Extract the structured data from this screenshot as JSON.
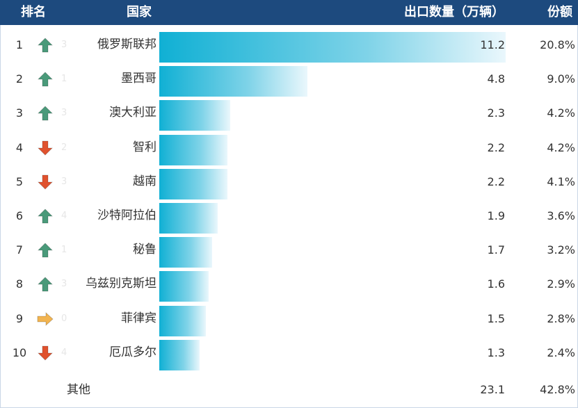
{
  "header": {
    "rank": "排名",
    "country": "国家",
    "exports": "出口数量（万辆）",
    "share": "份额"
  },
  "colors": {
    "header_bg": "#1d4a7e",
    "bar_start": "#10b0d4",
    "bar_end": "#eaf7fc",
    "trend_up": "#4a9a7a",
    "trend_down": "#e0522e",
    "trend_flat": "#f2b450"
  },
  "chart_data": {
    "type": "bar",
    "orientation": "horizontal",
    "categories": [
      "俄罗斯联邦",
      "墨西哥",
      "澳大利亚",
      "智利",
      "越南",
      "沙特阿拉伯",
      "秘鲁",
      "乌兹别克斯坦",
      "菲律宾",
      "厄瓜多尔"
    ],
    "values": [
      11.2,
      4.8,
      2.3,
      2.2,
      2.2,
      1.9,
      1.7,
      1.6,
      1.5,
      1.3
    ],
    "xlim": [
      0,
      11.2
    ]
  },
  "rows": [
    {
      "rank": "1",
      "country": "俄罗斯联邦",
      "value": "11.2",
      "share": "20.8%",
      "trend": "up",
      "trend_icon": "arrow-up-icon",
      "ghost": "3"
    },
    {
      "rank": "2",
      "country": "墨西哥",
      "value": "4.8",
      "share": "9.0%",
      "trend": "up",
      "trend_icon": "arrow-up-icon",
      "ghost": "1"
    },
    {
      "rank": "3",
      "country": "澳大利亚",
      "value": "2.3",
      "share": "4.2%",
      "trend": "up",
      "trend_icon": "arrow-up-icon",
      "ghost": "3"
    },
    {
      "rank": "4",
      "country": "智利",
      "value": "2.2",
      "share": "4.2%",
      "trend": "down",
      "trend_icon": "arrow-down-icon",
      "ghost": "2"
    },
    {
      "rank": "5",
      "country": "越南",
      "value": "2.2",
      "share": "4.1%",
      "trend": "down",
      "trend_icon": "arrow-down-icon",
      "ghost": "3"
    },
    {
      "rank": "6",
      "country": "沙特阿拉伯",
      "value": "1.9",
      "share": "3.6%",
      "trend": "up",
      "trend_icon": "arrow-up-icon",
      "ghost": "4"
    },
    {
      "rank": "7",
      "country": "秘鲁",
      "value": "1.7",
      "share": "3.2%",
      "trend": "up",
      "trend_icon": "arrow-up-icon",
      "ghost": "1"
    },
    {
      "rank": "8",
      "country": "乌兹别克斯坦",
      "value": "1.6",
      "share": "2.9%",
      "trend": "up",
      "trend_icon": "arrow-up-icon",
      "ghost": "3"
    },
    {
      "rank": "9",
      "country": "菲律宾",
      "value": "1.5",
      "share": "2.8%",
      "trend": "flat",
      "trend_icon": "arrow-right-icon",
      "ghost": "0"
    },
    {
      "rank": "10",
      "country": "厄瓜多尔",
      "value": "1.3",
      "share": "2.4%",
      "trend": "down",
      "trend_icon": "arrow-down-icon",
      "ghost": "4"
    }
  ],
  "other": {
    "label": "其他",
    "value": "23.1",
    "share": "42.8%"
  }
}
